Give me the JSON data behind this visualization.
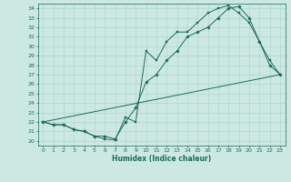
{
  "xlabel": "Humidex (Indice chaleur)",
  "bg_color": "#cce8e2",
  "line_color": "#1e6b5a",
  "grid_color": "#aad4cc",
  "xlim": [
    -0.5,
    23.5
  ],
  "ylim": [
    19.5,
    34.5
  ],
  "xticks": [
    0,
    1,
    2,
    3,
    4,
    5,
    6,
    7,
    8,
    9,
    10,
    11,
    12,
    13,
    14,
    15,
    16,
    17,
    18,
    19,
    20,
    21,
    22,
    23
  ],
  "yticks": [
    20,
    21,
    22,
    23,
    24,
    25,
    26,
    27,
    28,
    29,
    30,
    31,
    32,
    33,
    34
  ],
  "line1_x": [
    0,
    1,
    2,
    3,
    4,
    5,
    6,
    7,
    8,
    9,
    10,
    11,
    12,
    13,
    14,
    15,
    16,
    17,
    18,
    19,
    20,
    21,
    22,
    23
  ],
  "line1_y": [
    22.0,
    21.7,
    21.7,
    21.2,
    21.0,
    20.5,
    20.2,
    20.1,
    22.5,
    22.0,
    29.5,
    28.5,
    30.5,
    31.5,
    31.5,
    32.5,
    33.5,
    34.0,
    34.3,
    33.5,
    32.5,
    30.5,
    28.5,
    27.0
  ],
  "line2_x": [
    0,
    1,
    2,
    3,
    4,
    5,
    6,
    7,
    8,
    9,
    10,
    11,
    12,
    13,
    14,
    15,
    16,
    17,
    18,
    19,
    20,
    21,
    22,
    23
  ],
  "line2_y": [
    22.0,
    21.7,
    21.7,
    21.2,
    21.0,
    20.5,
    20.5,
    20.2,
    22.0,
    23.5,
    26.2,
    27.0,
    28.5,
    29.5,
    31.0,
    31.5,
    32.0,
    33.0,
    34.0,
    34.2,
    33.0,
    30.5,
    28.0,
    27.0
  ],
  "line3_x": [
    0,
    23
  ],
  "line3_y": [
    22.0,
    27.0
  ],
  "tick_fontsize": 4.5,
  "xlabel_fontsize": 5.5,
  "marker_size": 1.8,
  "line_width": 0.7
}
